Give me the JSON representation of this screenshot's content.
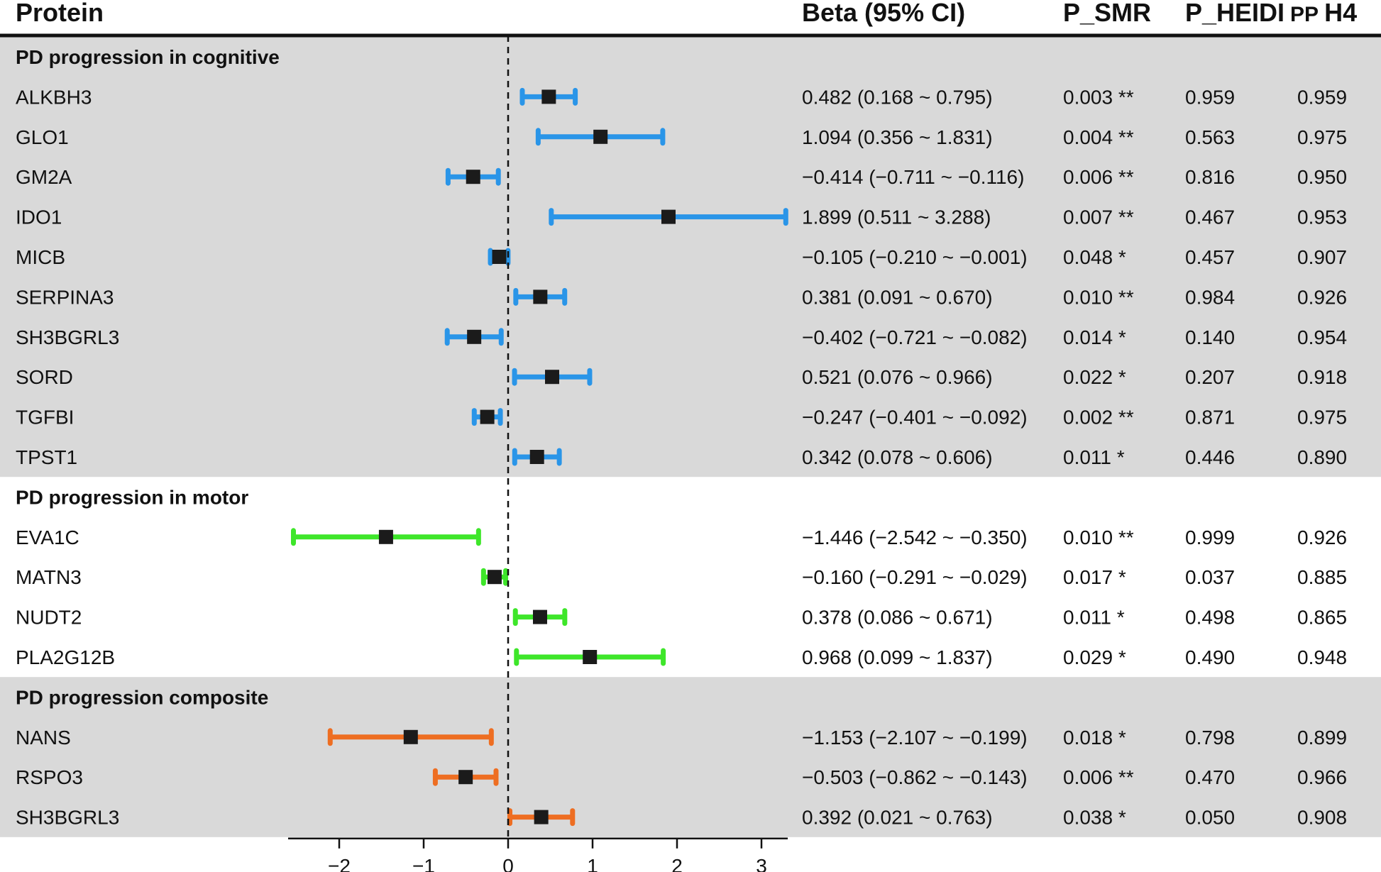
{
  "headers": {
    "protein": "Protein",
    "beta": "Beta (95% CI)",
    "p_smr": "P_SMR",
    "p_heidi": "P_HEIDI",
    "pp_prefix": "PP",
    "pp_suffix": "H4"
  },
  "colors": {
    "cognitive": "#2a95e8",
    "motor": "#3ee62a",
    "composite": "#ee6e22",
    "point": "#1b1b1b",
    "shade": "#d9d9d9"
  },
  "chart_data": {
    "type": "forest",
    "xlim": [
      -2.6,
      3.3
    ],
    "ticks": [
      -2,
      -1,
      0,
      1,
      2,
      3
    ],
    "tick_labels": [
      "−2",
      "−1",
      "0",
      "1",
      "2",
      "3"
    ],
    "reference_line": 0,
    "groups": [
      {
        "name": "PD progression in cognitive",
        "color_key": "cognitive",
        "shaded": true,
        "rows": [
          {
            "protein": "ALKBH3",
            "beta": 0.482,
            "lo": 0.168,
            "hi": 0.795,
            "beta_text": "0.482 (0.168 ~ 0.795)",
            "p_smr": "0.003 **",
            "p_heidi": "0.959",
            "pp_h4": "0.959"
          },
          {
            "protein": "GLO1",
            "beta": 1.094,
            "lo": 0.356,
            "hi": 1.831,
            "beta_text": "1.094 (0.356 ~ 1.831)",
            "p_smr": "0.004 **",
            "p_heidi": "0.563",
            "pp_h4": "0.975"
          },
          {
            "protein": "GM2A",
            "beta": -0.414,
            "lo": -0.711,
            "hi": -0.116,
            "beta_text": "−0.414 (−0.711 ~ −0.116)",
            "p_smr": "0.006 **",
            "p_heidi": "0.816",
            "pp_h4": "0.950"
          },
          {
            "protein": "IDO1",
            "beta": 1.899,
            "lo": 0.511,
            "hi": 3.288,
            "beta_text": "1.899 (0.511 ~ 3.288)",
            "p_smr": "0.007 **",
            "p_heidi": "0.467",
            "pp_h4": "0.953"
          },
          {
            "protein": "MICB",
            "beta": -0.105,
            "lo": -0.21,
            "hi": -0.001,
            "beta_text": "−0.105 (−0.210 ~ −0.001)",
            "p_smr": "0.048 *",
            "p_heidi": "0.457",
            "pp_h4": "0.907"
          },
          {
            "protein": "SERPINA3",
            "beta": 0.381,
            "lo": 0.091,
            "hi": 0.67,
            "beta_text": "0.381 (0.091 ~ 0.670)",
            "p_smr": "0.010 **",
            "p_heidi": "0.984",
            "pp_h4": "0.926"
          },
          {
            "protein": "SH3BGRL3",
            "beta": -0.402,
            "lo": -0.721,
            "hi": -0.082,
            "beta_text": "−0.402 (−0.721 ~ −0.082)",
            "p_smr": "0.014 *",
            "p_heidi": "0.140",
            "pp_h4": "0.954"
          },
          {
            "protein": "SORD",
            "beta": 0.521,
            "lo": 0.076,
            "hi": 0.966,
            "beta_text": "0.521 (0.076 ~ 0.966)",
            "p_smr": "0.022 *",
            "p_heidi": "0.207",
            "pp_h4": "0.918"
          },
          {
            "protein": "TGFBI",
            "beta": -0.247,
            "lo": -0.401,
            "hi": -0.092,
            "beta_text": "−0.247 (−0.401 ~ −0.092)",
            "p_smr": "0.002 **",
            "p_heidi": "0.871",
            "pp_h4": "0.975"
          },
          {
            "protein": "TPST1",
            "beta": 0.342,
            "lo": 0.078,
            "hi": 0.606,
            "beta_text": "0.342 (0.078 ~ 0.606)",
            "p_smr": "0.011 *",
            "p_heidi": "0.446",
            "pp_h4": "0.890"
          }
        ]
      },
      {
        "name": "PD progression in motor",
        "color_key": "motor",
        "shaded": false,
        "rows": [
          {
            "protein": "EVA1C",
            "beta": -1.446,
            "lo": -2.542,
            "hi": -0.35,
            "beta_text": "−1.446 (−2.542 ~ −0.350)",
            "p_smr": "0.010 **",
            "p_heidi": "0.999",
            "pp_h4": "0.926"
          },
          {
            "protein": "MATN3",
            "beta": -0.16,
            "lo": -0.291,
            "hi": -0.029,
            "beta_text": "−0.160 (−0.291 ~ −0.029)",
            "p_smr": "0.017 *",
            "p_heidi": "0.037",
            "pp_h4": "0.885"
          },
          {
            "protein": "NUDT2",
            "beta": 0.378,
            "lo": 0.086,
            "hi": 0.671,
            "beta_text": "0.378 (0.086 ~ 0.671)",
            "p_smr": "0.011 *",
            "p_heidi": "0.498",
            "pp_h4": "0.865"
          },
          {
            "protein": "PLA2G12B",
            "beta": 0.968,
            "lo": 0.099,
            "hi": 1.837,
            "beta_text": "0.968 (0.099 ~ 1.837)",
            "p_smr": "0.029 *",
            "p_heidi": "0.490",
            "pp_h4": "0.948"
          }
        ]
      },
      {
        "name": "PD progression composite",
        "color_key": "composite",
        "shaded": true,
        "rows": [
          {
            "protein": "NANS",
            "beta": -1.153,
            "lo": -2.107,
            "hi": -0.199,
            "beta_text": "−1.153 (−2.107 ~ −0.199)",
            "p_smr": "0.018 *",
            "p_heidi": "0.798",
            "pp_h4": "0.899"
          },
          {
            "protein": "RSPO3",
            "beta": -0.503,
            "lo": -0.862,
            "hi": -0.143,
            "beta_text": "−0.503 (−0.862 ~ −0.143)",
            "p_smr": "0.006 **",
            "p_heidi": "0.470",
            "pp_h4": "0.966"
          },
          {
            "protein": "SH3BGRL3",
            "beta": 0.392,
            "lo": 0.021,
            "hi": 0.763,
            "beta_text": "0.392 (0.021 ~ 0.763)",
            "p_smr": "0.038 *",
            "p_heidi": "0.050",
            "pp_h4": "0.908"
          }
        ]
      }
    ]
  }
}
